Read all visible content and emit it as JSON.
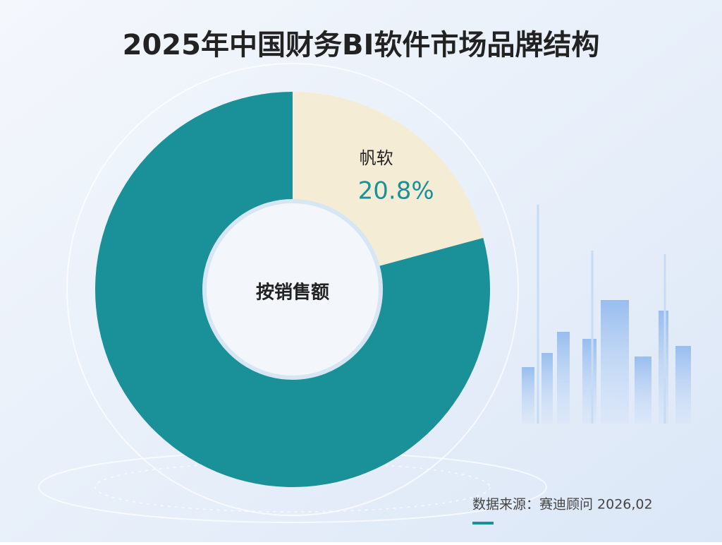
{
  "chart_data": {
    "type": "donut",
    "title": "2025年中国财务BI软件市场品牌结构",
    "categories": [
      "帆软",
      null
    ],
    "values": [
      20.8,
      79.2
    ],
    "value_labels": [
      "20.8%",
      null
    ],
    "colors": [
      "#f5ecd6",
      "#1a9199"
    ],
    "center_label": "按销售额",
    "source": "数据来源：赛迪顾问  2026,02"
  }
}
